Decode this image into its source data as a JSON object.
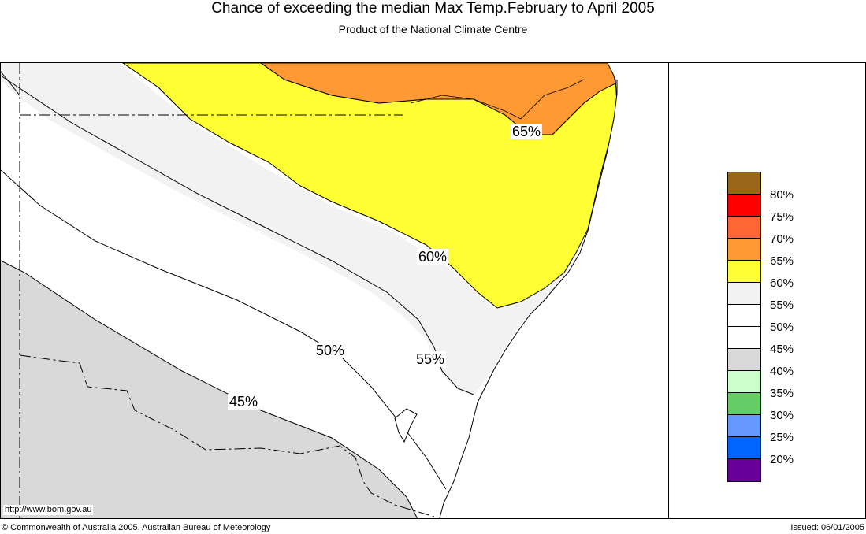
{
  "title": "Chance of exceeding the median Max Temp.February to April 2005",
  "subtitle": "Product of the National Climate Centre",
  "contour_labels": [
    {
      "text": "65%",
      "value": 65
    },
    {
      "text": "60%",
      "value": 60
    },
    {
      "text": "55%",
      "value": 55
    },
    {
      "text": "50%",
      "value": 50
    },
    {
      "text": "45%",
      "value": 45
    }
  ],
  "legend": {
    "items": [
      {
        "label": "80%",
        "color": "#99661a"
      },
      {
        "label": "75%",
        "color": "#ff0000"
      },
      {
        "label": "70%",
        "color": "#ff6633"
      },
      {
        "label": "65%",
        "color": "#ff9933"
      },
      {
        "label": "60%",
        "color": "#ffff33"
      },
      {
        "label": "55%",
        "color": "#f2f2f2"
      },
      {
        "label": "50%",
        "color": "#ffffff"
      },
      {
        "label": "45%",
        "color": "#ffffff"
      },
      {
        "label": "40%",
        "color": "#d9d9d9"
      },
      {
        "label": "35%",
        "color": "#ccffcc"
      },
      {
        "label": "30%",
        "color": "#66cc66"
      },
      {
        "label": "25%",
        "color": "#6699ff"
      },
      {
        "label": "20%",
        "color": "#0066ff"
      },
      {
        "label": "",
        "color": "#660099"
      }
    ]
  },
  "url": "http://www.bom.gov.au",
  "copyright": "© Commonwealth of Australia 2005, Australian Bureau of Meteorology",
  "issued": "Issued: 06/01/2005"
}
